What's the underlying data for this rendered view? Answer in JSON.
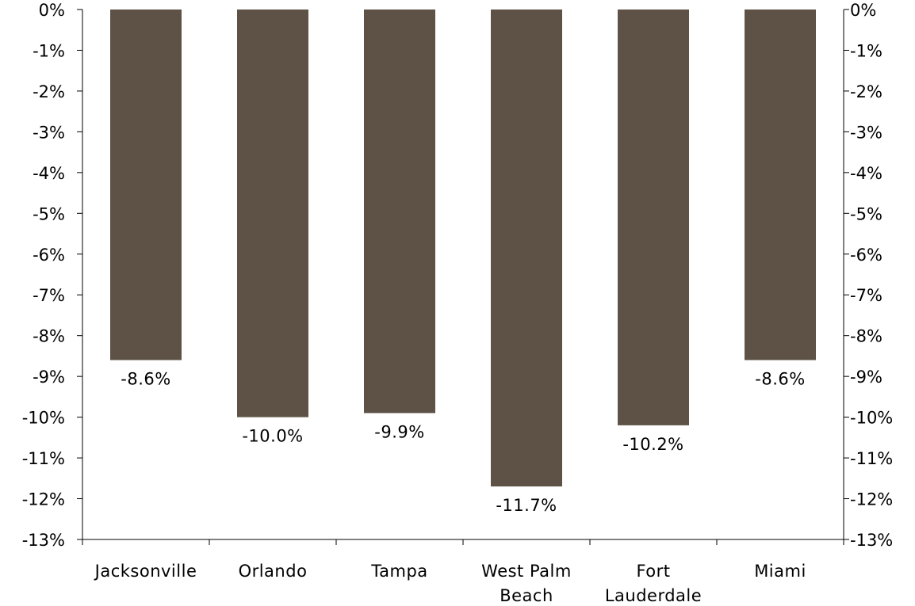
{
  "chart_data": {
    "type": "bar",
    "categories": [
      [
        "Jacksonville"
      ],
      [
        "Orlando"
      ],
      [
        "Tampa"
      ],
      [
        "West Palm",
        "Beach"
      ],
      [
        "Fort",
        "Lauderdale"
      ],
      [
        "Miami"
      ]
    ],
    "values": [
      -8.6,
      -10.0,
      -9.9,
      -11.7,
      -10.2,
      -8.6
    ],
    "data_labels": [
      "-8.6%",
      "-10.0%",
      "-9.9%",
      "-11.7%",
      "-10.2%",
      "-8.6%"
    ],
    "title": "",
    "xlabel": "",
    "ylabel": "",
    "ylim": [
      -13,
      0
    ],
    "y_ticks": [
      0,
      -1,
      -2,
      -3,
      -4,
      -5,
      -6,
      -7,
      -8,
      -9,
      -10,
      -11,
      -12,
      -13
    ],
    "y_tick_labels": [
      "0%",
      "-1%",
      "-2%",
      "-3%",
      "-4%",
      "-5%",
      "-6%",
      "-7%",
      "-8%",
      "-9%",
      "-10%",
      "-11%",
      "-12%",
      "-13%"
    ],
    "secondary_y_axis": true,
    "grid": false,
    "legend": "none",
    "bar_color": "#5d5245"
  }
}
